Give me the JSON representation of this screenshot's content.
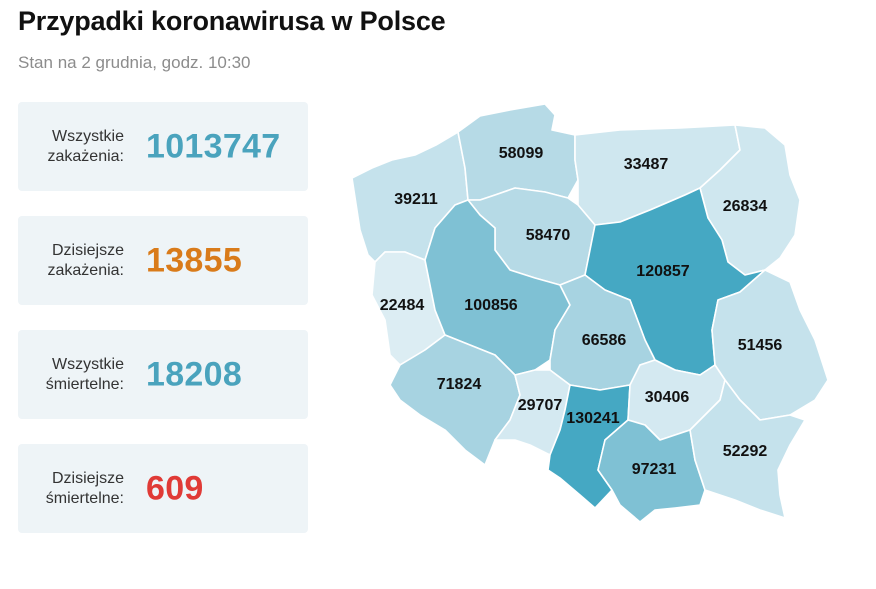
{
  "header": {
    "title": "Przypadki koronawirusa w Polsce",
    "subtitle": "Stan na 2 grudnia, godz. 10:30"
  },
  "stats": [
    {
      "label_line1": "Wszystkie",
      "label_line2": "zakażenia:",
      "value": "1013747",
      "color": "#4aa3bd"
    },
    {
      "label_line1": "Dzisiejsze",
      "label_line2": "zakażenia:",
      "value": "13855",
      "color": "#d97b1a"
    },
    {
      "label_line1": "Wszystkie",
      "label_line2": "śmiertelne:",
      "value": "18208",
      "color": "#4aa3bd"
    },
    {
      "label_line1": "Dzisiejsze",
      "label_line2": "śmiertelne:",
      "value": "609",
      "color": "#e03a36"
    }
  ],
  "map": {
    "regions": [
      {
        "value": "39211",
        "fill": "#c5e2ec"
      },
      {
        "value": "58099",
        "fill": "#b6dae6"
      },
      {
        "value": "33487",
        "fill": "#cfe7ef"
      },
      {
        "value": "26834",
        "fill": "#cfe7ef"
      },
      {
        "value": "58470",
        "fill": "#b6dae6"
      },
      {
        "value": "120857",
        "fill": "#45a8c3"
      },
      {
        "value": "22484",
        "fill": "#dcedf3"
      },
      {
        "value": "100856",
        "fill": "#7fc1d4"
      },
      {
        "value": "66586",
        "fill": "#a7d3e1"
      },
      {
        "value": "51456",
        "fill": "#c5e2ec"
      },
      {
        "value": "71824",
        "fill": "#a7d3e1"
      },
      {
        "value": "29707",
        "fill": "#d4e9f1"
      },
      {
        "value": "130241",
        "fill": "#45a8c3"
      },
      {
        "value": "30406",
        "fill": "#d4e9f1"
      },
      {
        "value": "97231",
        "fill": "#7fc1d4"
      },
      {
        "value": "52292",
        "fill": "#c5e2ec"
      }
    ]
  }
}
